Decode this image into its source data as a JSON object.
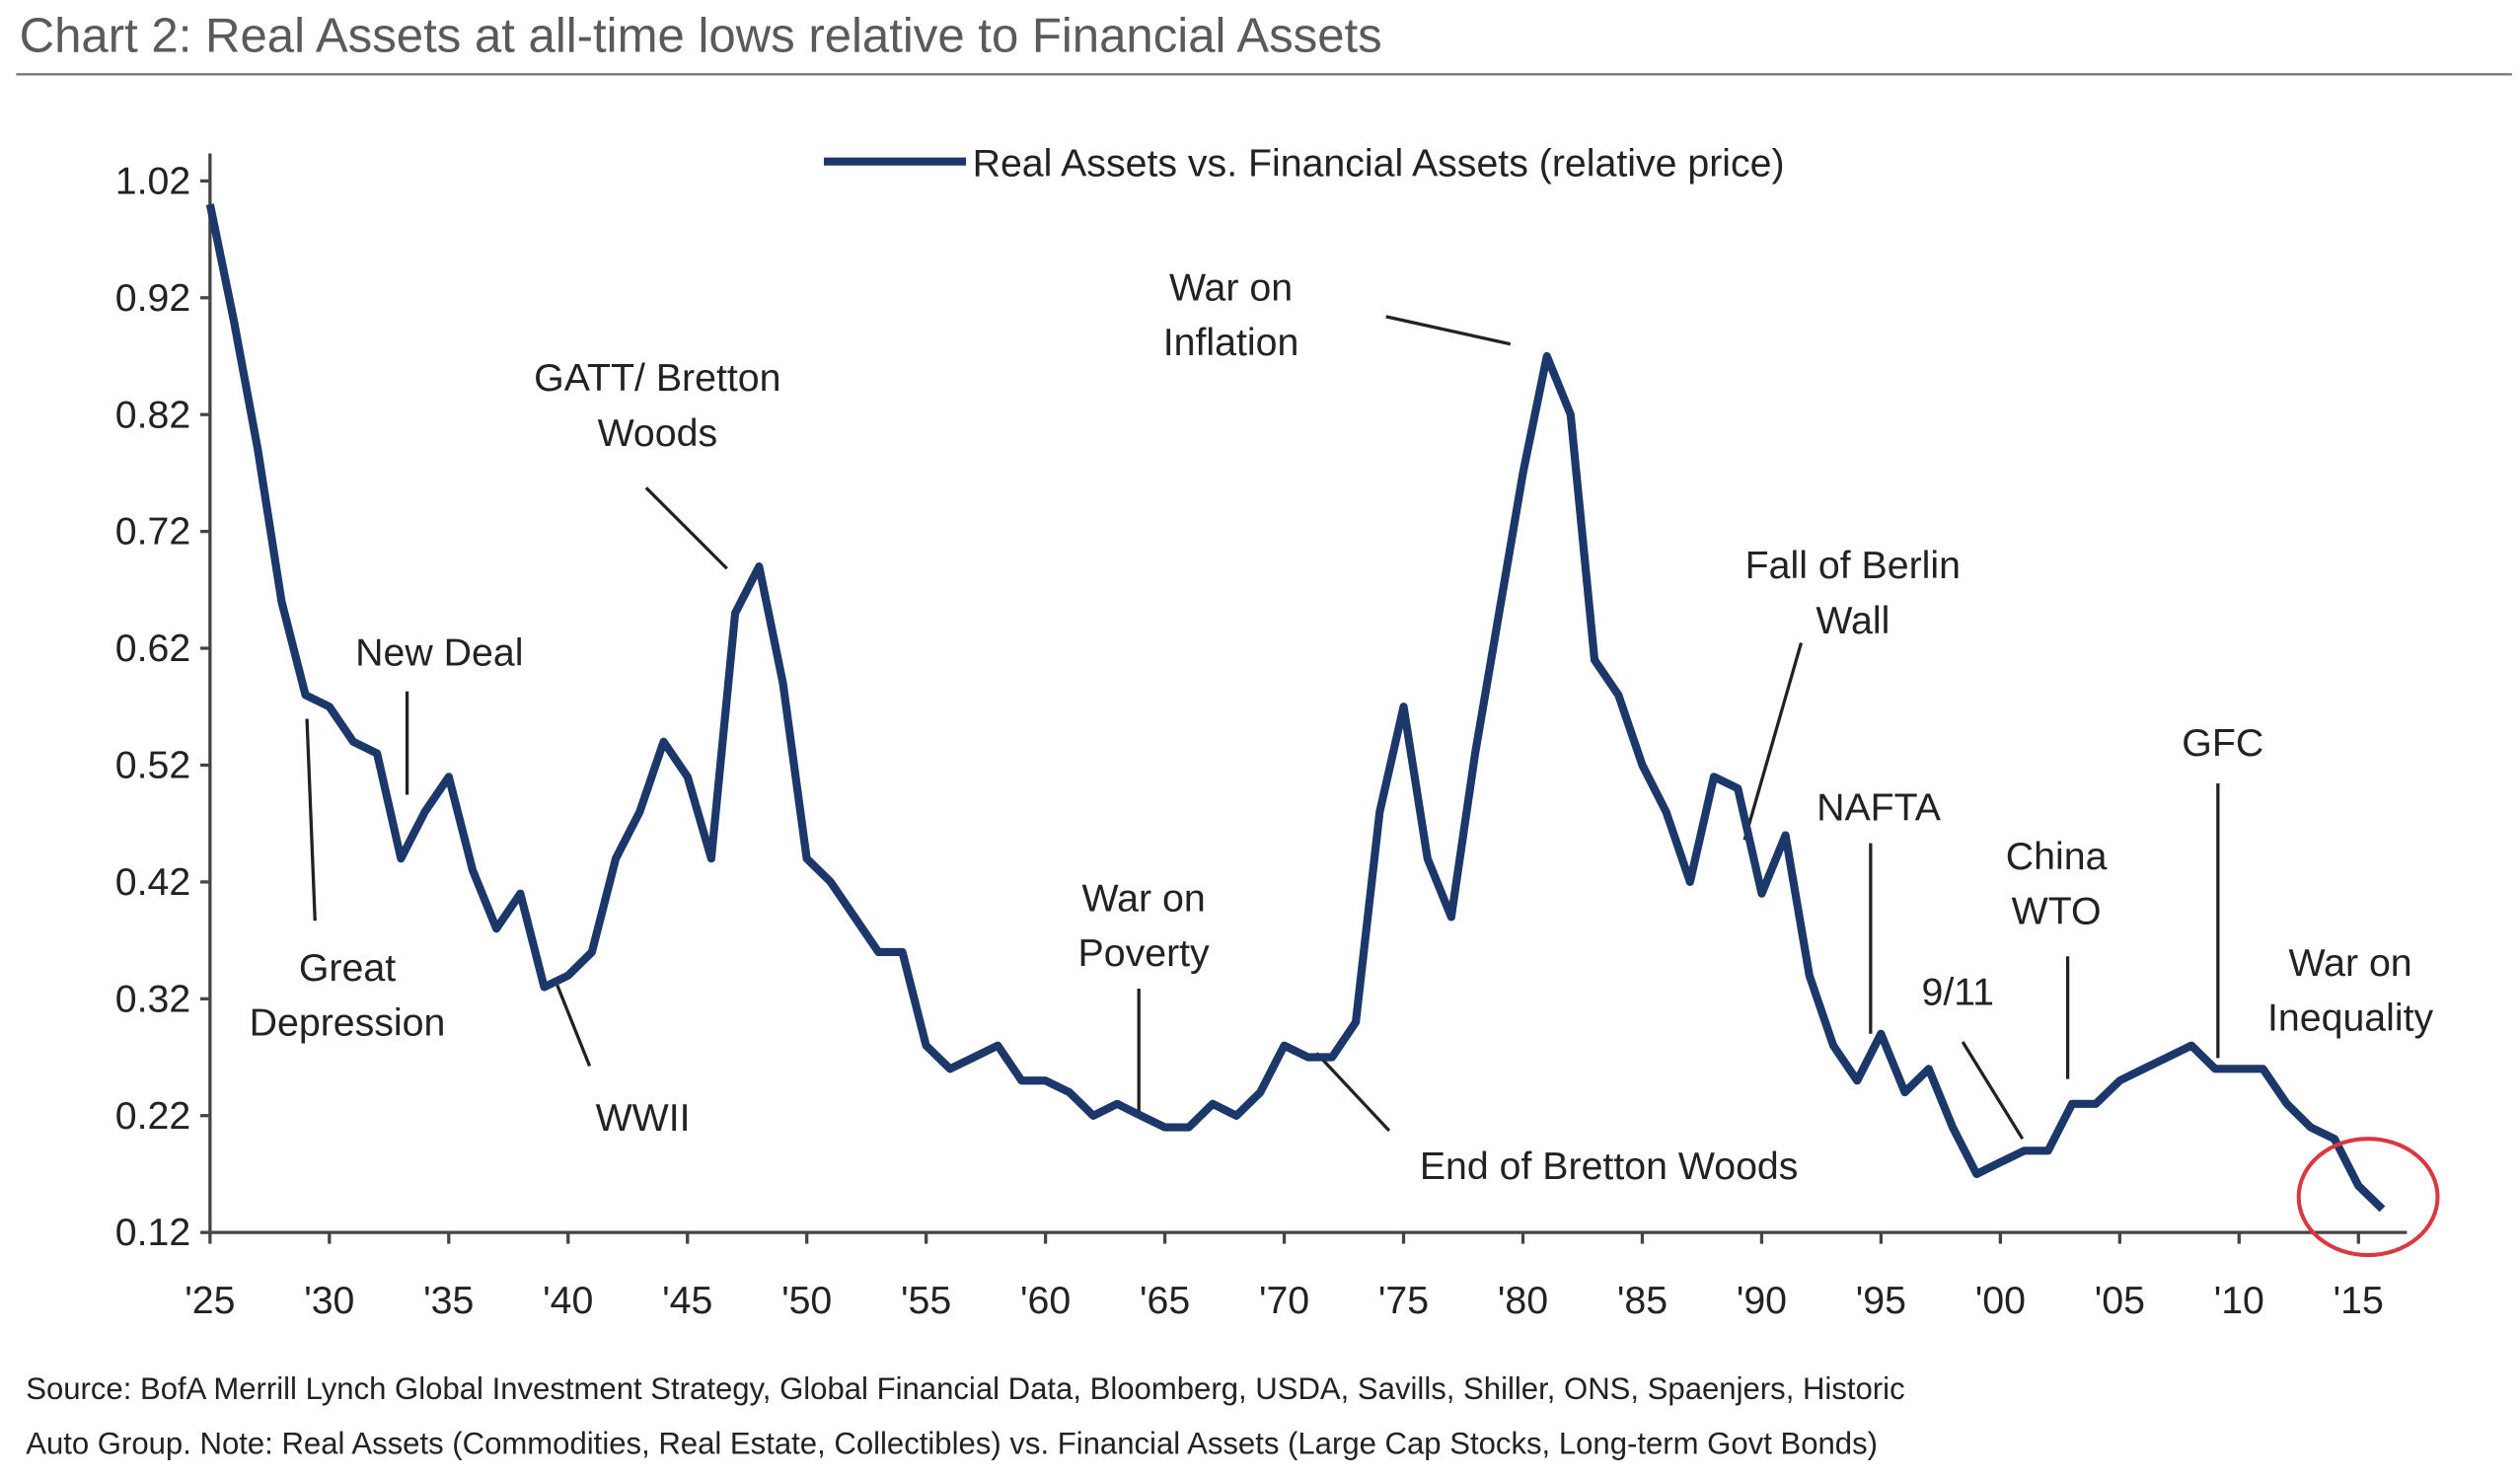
{
  "colors": {
    "line": "#1c3769",
    "accent": "#d9383e",
    "text": "#222222",
    "title": "#5a5a5a"
  },
  "chart_data": {
    "type": "line",
    "title": "Chart 2: Real Assets at all-time lows relative to Financial Assets",
    "xlabel": "",
    "ylabel": "",
    "xlim": [
      1925,
      2016
    ],
    "ylim": [
      0.12,
      1.02
    ],
    "grid": false,
    "legend": {
      "position": "top-center",
      "entries": [
        "Real Assets vs. Financial Assets (relative price)"
      ]
    },
    "y_ticks": [
      "0.12",
      "0.22",
      "0.32",
      "0.42",
      "0.52",
      "0.62",
      "0.72",
      "0.82",
      "0.92",
      "1.02"
    ],
    "y_tick_values": [
      0.12,
      0.22,
      0.32,
      0.42,
      0.52,
      0.62,
      0.72,
      0.82,
      0.92,
      1.02
    ],
    "x_ticks": [
      "'25",
      "'30",
      "'35",
      "'40",
      "'45",
      "'50",
      "'55",
      "'60",
      "'65",
      "'70",
      "'75",
      "'80",
      "'85",
      "'90",
      "'95",
      "'00",
      "'05",
      "'10",
      "'15"
    ],
    "x_tick_values": [
      1925,
      1930,
      1935,
      1940,
      1945,
      1950,
      1955,
      1960,
      1965,
      1970,
      1975,
      1980,
      1985,
      1990,
      1995,
      2000,
      2005,
      2010,
      2015
    ],
    "series": [
      {
        "name": "Real Assets vs. Financial Assets (relative price)",
        "x": [
          1925,
          1926,
          1927,
          1928,
          1929,
          1930,
          1931,
          1932,
          1933,
          1934,
          1935,
          1936,
          1937,
          1938,
          1939,
          1940,
          1941,
          1942,
          1943,
          1944,
          1945,
          1946,
          1947,
          1948,
          1949,
          1950,
          1951,
          1952,
          1953,
          1954,
          1955,
          1956,
          1957,
          1958,
          1959,
          1960,
          1961,
          1962,
          1963,
          1964,
          1965,
          1966,
          1967,
          1968,
          1969,
          1970,
          1971,
          1972,
          1973,
          1974,
          1975,
          1976,
          1977,
          1978,
          1979,
          1980,
          1981,
          1982,
          1983,
          1984,
          1985,
          1986,
          1987,
          1988,
          1989,
          1990,
          1991,
          1992,
          1993,
          1994,
          1995,
          1996,
          1997,
          1998,
          1999,
          2000,
          2001,
          2002,
          2003,
          2004,
          2005,
          2006,
          2007,
          2008,
          2009,
          2010,
          2011,
          2012,
          2013,
          2014,
          2015,
          2016
        ],
        "values": [
          1.0,
          0.9,
          0.79,
          0.66,
          0.58,
          0.57,
          0.54,
          0.53,
          0.44,
          0.48,
          0.51,
          0.43,
          0.38,
          0.41,
          0.33,
          0.34,
          0.36,
          0.44,
          0.48,
          0.54,
          0.51,
          0.44,
          0.65,
          0.69,
          0.59,
          0.44,
          0.42,
          0.39,
          0.36,
          0.36,
          0.28,
          0.26,
          0.27,
          0.28,
          0.25,
          0.25,
          0.24,
          0.22,
          0.23,
          0.22,
          0.21,
          0.21,
          0.23,
          0.22,
          0.24,
          0.28,
          0.27,
          0.27,
          0.3,
          0.48,
          0.57,
          0.44,
          0.39,
          0.53,
          0.65,
          0.77,
          0.87,
          0.82,
          0.61,
          0.58,
          0.52,
          0.48,
          0.42,
          0.51,
          0.5,
          0.41,
          0.46,
          0.34,
          0.28,
          0.25,
          0.29,
          0.24,
          0.26,
          0.21,
          0.17,
          0.18,
          0.19,
          0.19,
          0.23,
          0.23,
          0.25,
          0.26,
          0.27,
          0.28,
          0.26,
          0.26,
          0.26,
          0.23,
          0.21,
          0.2,
          0.16,
          0.14
        ]
      }
    ],
    "annotations": [
      {
        "lines": [
          "Great",
          "Depression"
        ],
        "year": 1929
      },
      {
        "lines": [
          "New Deal"
        ],
        "year": 1933
      },
      {
        "lines": [
          "WWII"
        ],
        "year": 1940
      },
      {
        "lines": [
          "GATT/ Bretton",
          "Woods"
        ],
        "year": 1948
      },
      {
        "lines": [
          "War on",
          "Poverty"
        ],
        "year": 1964
      },
      {
        "lines": [
          "End of Bretton Woods"
        ],
        "year": 1971
      },
      {
        "lines": [
          "War on",
          "Inflation"
        ],
        "year": 1981
      },
      {
        "lines": [
          "Fall of Berlin",
          "Wall"
        ],
        "year": 1989
      },
      {
        "lines": [
          "NAFTA"
        ],
        "year": 1994
      },
      {
        "lines": [
          "9/11"
        ],
        "year": 2001
      },
      {
        "lines": [
          "China",
          "WTO"
        ],
        "year": 2003
      },
      {
        "lines": [
          "GFC"
        ],
        "year": 2008
      },
      {
        "lines": [
          "War on",
          "Inequality"
        ],
        "year": 2016,
        "highlight": true
      }
    ],
    "source": [
      "Source: BofA Merrill Lynch Global Investment Strategy, Global Financial Data, Bloomberg, USDA, Savills, Shiller, ONS, Spaenjers, Historic",
      "Auto Group. Note: Real Assets (Commodities, Real Estate, Collectibles) vs. Financial Assets (Large Cap Stocks, Long-term Govt Bonds)"
    ]
  }
}
